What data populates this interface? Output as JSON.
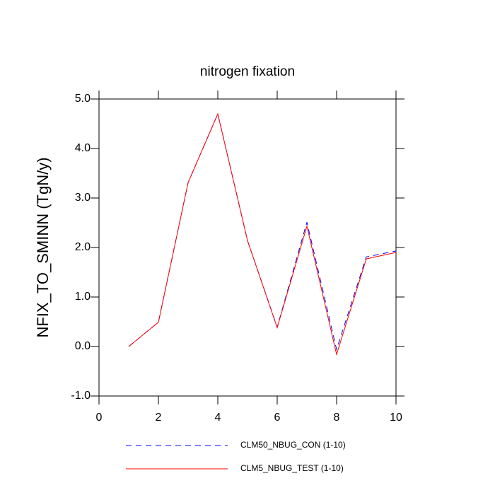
{
  "chart_data": {
    "type": "line",
    "title": "nitrogen fixation",
    "y_label": "NFIX_TO_SMINN  (TgN/y)",
    "x": [
      1,
      2,
      3,
      4,
      5,
      6,
      7,
      8,
      9,
      10
    ],
    "series": [
      {
        "name": "CLM50_NBUG_CON (1-10)",
        "color": "#0000ff",
        "dash": "dashed",
        "values": [
          0.0,
          0.49,
          3.31,
          4.7,
          2.14,
          0.39,
          2.51,
          -0.06,
          1.81,
          1.93
        ]
      },
      {
        "name": "CLM5_NBUG_TEST (1-10)",
        "color": "#ff0000",
        "dash": "solid",
        "values": [
          0.0,
          0.49,
          3.31,
          4.7,
          2.14,
          0.38,
          2.43,
          -0.16,
          1.77,
          1.9
        ]
      }
    ],
    "xlim": [
      0,
      10
    ],
    "xticks": [
      0,
      2,
      4,
      6,
      8,
      10
    ],
    "ylim": [
      -1,
      5
    ],
    "yticks": [
      {
        "value": -1,
        "label": "-1.0"
      },
      {
        "value": 0,
        "label": "0.0"
      },
      {
        "value": 1,
        "label": "1.0"
      },
      {
        "value": 2,
        "label": "2.0"
      },
      {
        "value": 3,
        "label": "3.0"
      },
      {
        "value": 4,
        "label": "4.0"
      },
      {
        "value": 5,
        "label": "5.0"
      }
    ]
  }
}
